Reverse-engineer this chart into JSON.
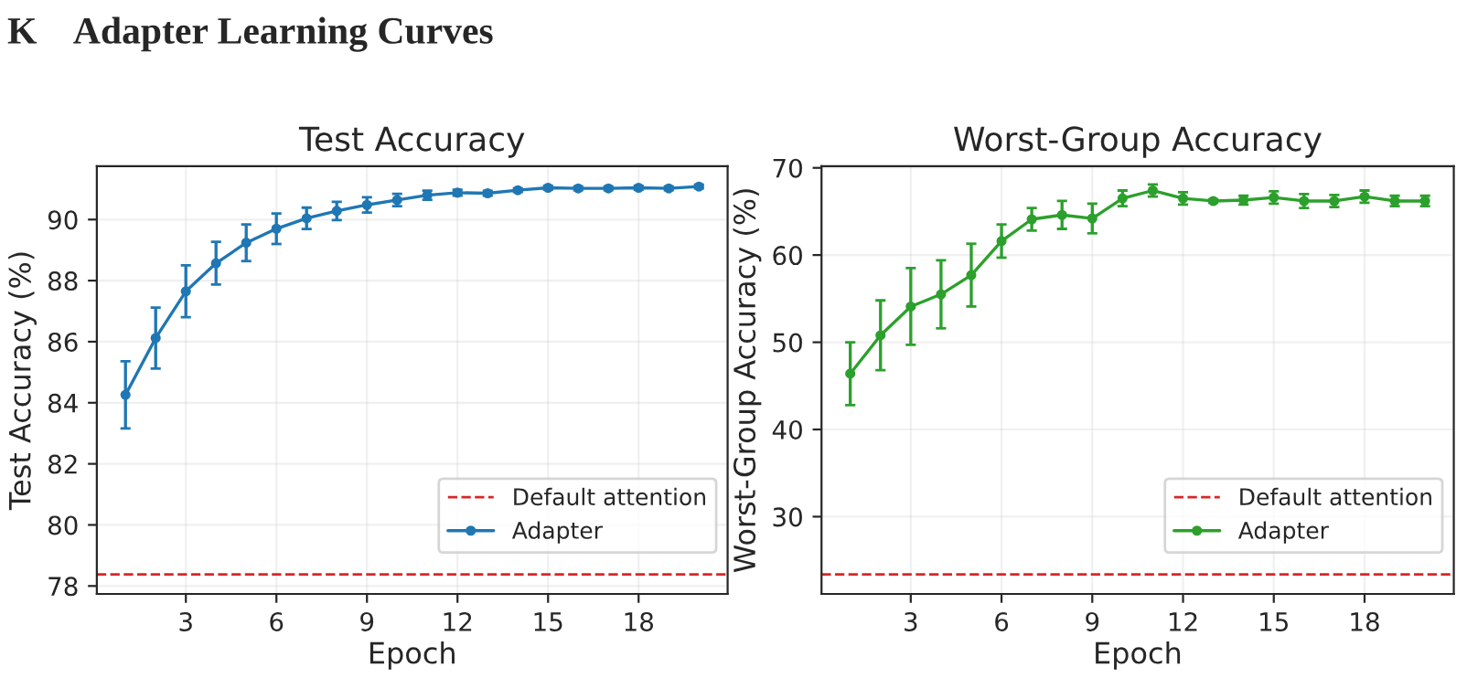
{
  "chart_data": [
    {
      "type": "line",
      "title": "Test Accuracy",
      "xlabel": "Epoch",
      "ylabel": "Test Accuracy (%)",
      "annotations": [
        "K    Adapter Learning Curves"
      ],
      "x": [
        1,
        2,
        3,
        4,
        5,
        6,
        7,
        8,
        9,
        10,
        11,
        12,
        13,
        14,
        15,
        16,
        17,
        18,
        19,
        20
      ],
      "series": [
        {
          "name": "Adapter",
          "color": "#1f77b4",
          "values": [
            84.26,
            86.12,
            87.65,
            88.57,
            89.24,
            89.7,
            90.04,
            90.28,
            90.48,
            90.64,
            90.8,
            90.88,
            90.86,
            90.96,
            91.04,
            91.02,
            91.02,
            91.04,
            91.02,
            91.08
          ],
          "errors": [
            1.1,
            1.0,
            0.85,
            0.7,
            0.6,
            0.5,
            0.35,
            0.3,
            0.25,
            0.2,
            0.15,
            0.1,
            0.08,
            0.06,
            0.06,
            0.06,
            0.06,
            0.06,
            0.06,
            0.06
          ]
        }
      ],
      "ref_lines": [
        {
          "axis": "y",
          "value": 78.38,
          "label": "Default attention",
          "color": "#d62728",
          "line_style": "dashed"
        }
      ],
      "xlim": [
        0.05,
        20.95
      ],
      "ylim": [
        77.74,
        91.75
      ],
      "xticks": [
        3,
        6,
        9,
        12,
        15,
        18
      ],
      "yticks": [
        78,
        80,
        82,
        84,
        86,
        88,
        90
      ],
      "grid": true,
      "legend": "bottom right",
      "marker": "circle",
      "line_style": "solid"
    },
    {
      "type": "line",
      "title": "Worst-Group Accuracy",
      "xlabel": "Epoch",
      "ylabel": "Worst-Group Accuracy (%)",
      "x": [
        1,
        2,
        3,
        4,
        5,
        6,
        7,
        8,
        9,
        10,
        11,
        12,
        13,
        14,
        15,
        16,
        17,
        18,
        19,
        20
      ],
      "series": [
        {
          "name": "Adapter",
          "color": "#2ca02c",
          "values": [
            46.4,
            50.8,
            54.1,
            55.5,
            57.7,
            61.6,
            64.1,
            64.6,
            64.2,
            66.5,
            67.4,
            66.5,
            66.2,
            66.3,
            66.6,
            66.2,
            66.2,
            66.7,
            66.2,
            66.2
          ],
          "errors": [
            3.6,
            4.0,
            4.4,
            3.9,
            3.6,
            1.9,
            1.3,
            1.6,
            1.7,
            0.9,
            0.7,
            0.7,
            0.2,
            0.5,
            0.7,
            0.8,
            0.7,
            0.7,
            0.6,
            0.6
          ]
        }
      ],
      "ref_lines": [
        {
          "axis": "y",
          "value": 23.37,
          "label": "Default attention",
          "color": "#d62728",
          "line_style": "dashed"
        }
      ],
      "xlim": [
        0.05,
        20.95
      ],
      "ylim": [
        21.14,
        70.2
      ],
      "xticks": [
        3,
        6,
        9,
        12,
        15,
        18
      ],
      "yticks": [
        30,
        40,
        50,
        60,
        70
      ],
      "grid": true,
      "legend": "bottom right",
      "marker": "circle",
      "line_style": "solid"
    }
  ]
}
